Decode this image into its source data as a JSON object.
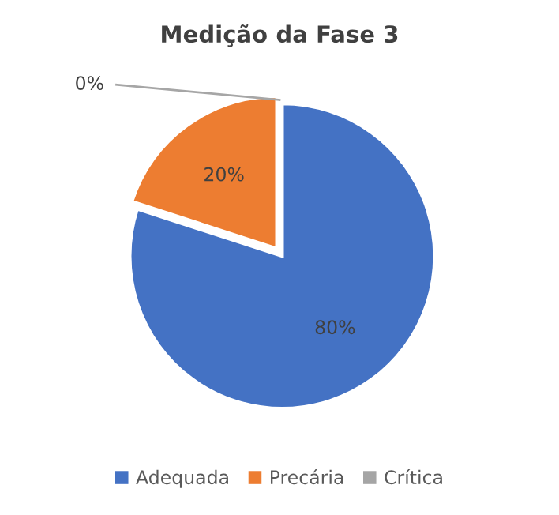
{
  "chart_data": {
    "type": "pie",
    "title": "Medição da Fase 3",
    "categories": [
      "Adequada",
      "Precária",
      "Crítica"
    ],
    "values": [
      80,
      20,
      0
    ],
    "colors": [
      "#4472c4",
      "#ed7d31",
      "#a5a5a5"
    ],
    "value_labels": [
      "80%",
      "20%",
      "0%"
    ],
    "legend": "bottom"
  }
}
